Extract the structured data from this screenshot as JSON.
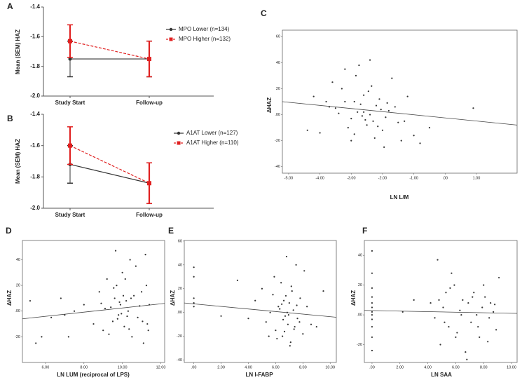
{
  "chart_data": [
    {
      "type": "line",
      "panel": "A",
      "ylabel": "Mean (SEM) HAZ",
      "categories": [
        "Study Start",
        "Follow-up"
      ],
      "ylim": [
        -2.0,
        -1.4
      ],
      "yticks": [
        -1.4,
        -1.6,
        -1.8,
        {
          "value": -2.0,
          "label": "-2.0"
        }
      ],
      "series": [
        {
          "name": "MPO Lower (n=134)",
          "color": "#333333",
          "dash": false,
          "values": [
            -1.75,
            -1.75
          ],
          "errors": [
            0.12,
            0.12
          ]
        },
        {
          "name": "MPO Higher (n=132)",
          "color": "#e02020",
          "dash": true,
          "values": [
            -1.63,
            -1.75
          ],
          "errors": [
            0.11,
            0.12
          ]
        }
      ]
    },
    {
      "type": "line",
      "panel": "B",
      "ylabel": "Mean (SEM) HAZ",
      "categories": [
        "Study Start",
        "Follow-up"
      ],
      "ylim": [
        -2.0,
        -1.4
      ],
      "yticks": [
        -1.4,
        -1.6,
        -1.8,
        {
          "value": -2.0,
          "label": "-2.0"
        }
      ],
      "series": [
        {
          "name": "A1AT Lower (n=127)",
          "color": "#333333",
          "dash": false,
          "values": [
            -1.72,
            -1.84
          ],
          "errors": [
            0.12,
            0.13
          ]
        },
        {
          "name": "A1AT Higher (n=110)",
          "color": "#e02020",
          "dash": true,
          "values": [
            -1.6,
            -1.84
          ],
          "errors": [
            0.12,
            0.13
          ]
        }
      ]
    },
    {
      "type": "scatter",
      "panel": "C",
      "ylabel": "ΔHAZ",
      "xlabel": "LN L/M",
      "xlim": [
        -5.2,
        2.3
      ],
      "ylim": [
        -45,
        65
      ],
      "xticks": [
        {
          "value": -5,
          "label": "-5.00"
        },
        {
          "value": -4,
          "label": "-4.00"
        },
        {
          "value": -3,
          "label": "-3.00"
        },
        {
          "value": -2,
          "label": "-2.00"
        },
        {
          "value": -1,
          "label": "-1.00"
        },
        {
          "value": 0,
          "label": ".00"
        },
        {
          "value": 1,
          "label": "1.00"
        }
      ],
      "yticks": [
        60,
        40,
        20,
        {
          "value": 0,
          "label": ".00"
        },
        -20,
        -40
      ],
      "x": [
        -3.5,
        -3.2,
        -3.0,
        -2.8,
        -2.6,
        -2.5,
        -2.4,
        -2.2,
        -2.0,
        -1.8,
        -3.3,
        -2.9,
        -2.7,
        -2.3,
        -2.1,
        -1.9,
        -1.6,
        -1.4,
        -3.8,
        -4.0,
        -4.4,
        -3.6,
        -3.1,
        -2.85,
        -2.65,
        -2.45,
        -2.25,
        -2.05,
        -1.85,
        -1.5,
        -1.2,
        -1.0,
        -0.8,
        -0.5,
        -3.4,
        -3.0,
        -2.75,
        -2.55,
        -2.35,
        -2.15,
        -1.95,
        -1.7,
        -1.3,
        -4.2,
        -3.7,
        0.9,
        -2.6,
        -2.9,
        -2.4,
        -3.2
      ],
      "values": [
        5,
        10,
        -3,
        2,
        15,
        -8,
        0,
        7,
        -12,
        3,
        20,
        -15,
        8,
        -5,
        12,
        -2,
        6,
        -20,
        10,
        -14,
        -12,
        25,
        -10,
        30,
        -1,
        18,
        -18,
        4,
        9,
        -6,
        14,
        -16,
        -22,
        -10,
        1,
        -20,
        38,
        -4,
        22,
        -9,
        -25,
        28,
        -5,
        14,
        6,
        5,
        2,
        10,
        42,
        35
      ],
      "fit": {
        "x": [
          -5.2,
          2.3
        ],
        "y": [
          10,
          -8
        ]
      }
    },
    {
      "type": "scatter",
      "panel": "D",
      "ylabel": "ΔHAZ",
      "xlabel": "LN LUM (reciprocal of LPS)",
      "xlim": [
        4.8,
        12.2
      ],
      "ylim": [
        -40,
        55
      ],
      "xticks": [
        {
          "value": 6,
          "label": "6.00"
        },
        {
          "value": 8,
          "label": "8.00"
        },
        {
          "value": 10,
          "label": "10.00"
        },
        {
          "value": 12,
          "label": "12.00"
        }
      ],
      "yticks": [
        40,
        20,
        {
          "value": 0,
          "label": ".00"
        },
        -20
      ],
      "x": [
        5.2,
        5.5,
        6.3,
        6.8,
        7.2,
        7.5,
        8.0,
        8.5,
        8.8,
        9.0,
        9.2,
        9.4,
        9.5,
        9.6,
        9.7,
        9.8,
        9.9,
        10.0,
        10.1,
        10.2,
        10.3,
        10.4,
        10.5,
        10.6,
        10.8,
        11.0,
        11.1,
        11.2,
        11.3,
        11.4,
        9.1,
        9.3,
        9.55,
        9.75,
        9.85,
        9.95,
        10.05,
        10.15,
        10.35,
        10.7,
        10.9,
        11.05,
        11.25,
        11.35,
        8.9,
        9.65,
        10.25,
        10.45,
        7.0,
        5.8
      ],
      "values": [
        8,
        -25,
        -5,
        10,
        -20,
        0,
        5,
        -10,
        15,
        -15,
        25,
        3,
        -8,
        10,
        20,
        -3,
        5,
        30,
        -12,
        8,
        0,
        40,
        -20,
        12,
        -5,
        15,
        -25,
        44,
        -10,
        5,
        2,
        -18,
        18,
        -6,
        7,
        -2,
        12,
        25,
        -14,
        35,
        4,
        -8,
        20,
        -15,
        6,
        47,
        -4,
        10,
        -3,
        -20
      ],
      "fit": {
        "x": [
          4.8,
          12.2
        ],
        "y": [
          -6,
          6
        ]
      }
    },
    {
      "type": "scatter",
      "panel": "E",
      "ylabel": "ΔHAZ",
      "xlabel": "LN I-FABP",
      "xlim": [
        -0.7,
        10.45
      ],
      "ylim": [
        -42,
        60.5
      ],
      "xticks": [
        {
          "value": 0,
          "label": ".00"
        },
        {
          "value": 2,
          "label": "2.00"
        },
        {
          "value": 4,
          "label": "4.00"
        },
        {
          "value": 6,
          "label": "6.00"
        },
        {
          "value": 8,
          "label": "8.00"
        },
        {
          "value": 10,
          "label": "10.00"
        }
      ],
      "yticks": [
        60,
        40,
        20,
        {
          "value": 0,
          "label": ".00"
        },
        -20,
        -40
      ],
      "x": [
        0,
        0,
        0,
        0,
        0,
        3.2,
        4.0,
        4.5,
        5.0,
        5.3,
        5.6,
        5.8,
        6.0,
        6.2,
        6.4,
        6.5,
        6.6,
        6.7,
        6.8,
        6.9,
        7.0,
        7.1,
        7.2,
        7.3,
        7.4,
        7.5,
        7.6,
        7.8,
        8.0,
        8.3,
        8.6,
        9.0,
        9.5,
        5.9,
        6.1,
        6.3,
        6.55,
        6.75,
        6.95,
        7.15,
        7.35,
        7.55,
        7.75,
        8.1,
        6.85,
        7.05,
        6.45,
        6.65,
        2.0,
        5.5
      ],
      "values": [
        38,
        30,
        12,
        5,
        8,
        27,
        -5,
        10,
        20,
        -8,
        0,
        15,
        -15,
        5,
        25,
        -20,
        10,
        -3,
        47,
        -10,
        8,
        -25,
        18,
        2,
        -12,
        40,
        -5,
        12,
        -18,
        5,
        -10,
        -12,
        18,
        30,
        -22,
        3,
        -6,
        14,
        -2,
        22,
        -14,
        6,
        -8,
        35,
        0,
        -28,
        7,
        -16,
        -3,
        -20
      ],
      "fit": {
        "x": [
          -0.7,
          10.45
        ],
        "y": [
          8,
          -4
        ]
      }
    },
    {
      "type": "scatter",
      "panel": "F",
      "ylabel": "ΔHAZ",
      "xlabel": "LN SAA",
      "xlim": [
        -0.55,
        10.4
      ],
      "ylim": [
        -32,
        50
      ],
      "xticks": [
        {
          "value": 0,
          "label": ".00"
        },
        {
          "value": 2,
          "label": "2.00"
        },
        {
          "value": 4,
          "label": "4.00"
        },
        {
          "value": 6,
          "label": "6.00"
        },
        {
          "value": 8,
          "label": "8.00"
        },
        {
          "value": 10,
          "label": "10.00"
        }
      ],
      "yticks": [
        40,
        20,
        {
          "value": 0,
          "label": ".00"
        },
        -20
      ],
      "x": [
        0,
        0,
        0,
        0,
        0,
        0,
        0,
        0,
        0,
        0,
        0,
        0,
        2.2,
        3.0,
        4.2,
        4.5,
        4.7,
        4.9,
        5.1,
        5.3,
        5.5,
        5.7,
        5.9,
        6.1,
        6.3,
        6.5,
        6.7,
        6.9,
        7.1,
        7.3,
        7.5,
        7.7,
        7.9,
        8.1,
        8.3,
        8.5,
        8.7,
        8.9,
        9.1,
        4.8,
        5.2,
        5.6,
        6.0,
        6.4,
        6.8,
        7.2,
        7.6,
        8.0,
        8.4,
        8.8
      ],
      "values": [
        43,
        28,
        18,
        12,
        8,
        5,
        2,
        0,
        -3,
        -8,
        -15,
        -24,
        2,
        10,
        8,
        -2,
        37,
        -20,
        5,
        15,
        -8,
        28,
        20,
        -12,
        3,
        10,
        -25,
        8,
        -5,
        15,
        0,
        -15,
        5,
        12,
        -18,
        8,
        2,
        -10,
        25,
        10,
        -5,
        18,
        -15,
        0,
        -30,
        12,
        -8,
        20,
        -2,
        7
      ],
      "fit": {
        "x": [
          -0.55,
          10.4
        ],
        "y": [
          3,
          1
        ]
      }
    }
  ]
}
